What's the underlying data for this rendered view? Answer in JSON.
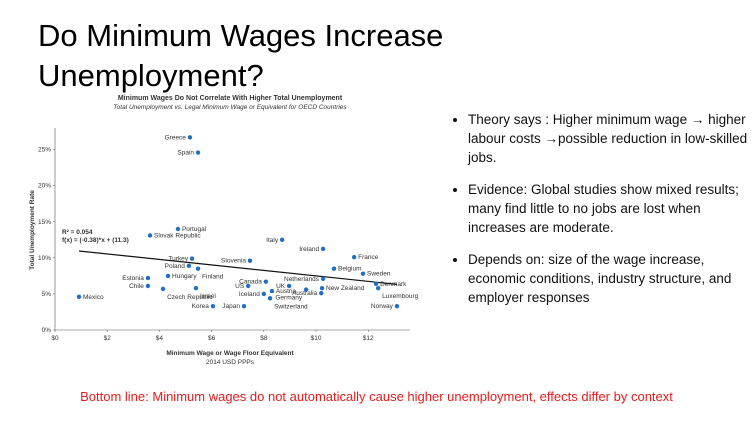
{
  "slide_title": [
    "Do Minimum Wages Increase",
    "Unemployment?"
  ],
  "bullets": [
    "Theory says : Higher minimum wage → higher labour costs →possible reduction in low-skilled jobs.",
    "Evidence: Global studies show mixed results; many find little to no jobs are lost when increases are moderate.",
    "Depends on: size of the wage increase, economic conditions, industry structure, and employer responses"
  ],
  "bottom_line": "Bottom line: Minimum wages do not automatically cause higher unemployment, effects differ by context",
  "chart_data": {
    "type": "scatter",
    "title": "Minimum Wages Do Not Correlate With Higher Total Unemployment",
    "subtitle": "Total Unemployment vs. Legal Minimum Wage or Equivalent for OECD Countries",
    "x_label": "Minimum Wage or Wage Floor Equivalent",
    "x_sublabel": "2014 USD PPPs",
    "y_label": "Total Unemployment Rate",
    "color": "#1f6fc4",
    "point_labels": [
      "Greece",
      "Spain",
      "Portugal",
      "Slovak Republic",
      "Italy",
      "Ireland",
      "France",
      "Slovenia",
      "Turkey",
      "Poland",
      "Finland",
      "Belgium",
      "Sweden",
      "Netherlands",
      "Estonia",
      "Hungary",
      "Chile",
      "Czech Republic",
      "Canada",
      "US",
      "UK",
      "New Zealand",
      "Denmark",
      "Austria",
      "Iceland",
      "Luxembourg",
      "Israel",
      "Australia",
      "Germany",
      "Switzerland",
      "Korea",
      "Japan",
      "Norway",
      "Mexico"
    ],
    "x": [
      5.17,
      5.48,
      4.71,
      3.64,
      8.7,
      10.27,
      11.46,
      7.47,
      5.25,
      5.13,
      5.48,
      10.69,
      11.8,
      10.27,
      3.56,
      4.33,
      3.56,
      4.14,
      8.08,
      7.4,
      8.97,
      10.23,
      12.3,
      8.31,
      8.0,
      12.38,
      5.4,
      10.2,
      9.62,
      8.24,
      6.05,
      7.24,
      13.1,
      0.92
    ],
    "values": [
      26.7,
      24.6,
      14.0,
      13.1,
      12.5,
      11.25,
      10.1,
      9.6,
      9.9,
      8.9,
      8.5,
      8.5,
      7.8,
      7.1,
      7.2,
      7.5,
      6.1,
      5.7,
      6.7,
      6.1,
      6.1,
      5.8,
      6.4,
      5.4,
      5.0,
      5.8,
      5.8,
      5.1,
      5.6,
      4.4,
      3.3,
      3.3,
      3.3,
      4.6
    ],
    "trend": {
      "slope": -0.38,
      "intercept": 11.3,
      "labels": [
        "R² = 0.054",
        "f(x) = (-0.38)*x + (11.3)"
      ]
    },
    "xlim": [
      0,
      13.6
    ],
    "ylim": [
      0,
      28
    ],
    "xticks": [
      {
        "value": 0,
        "label": "$0"
      },
      {
        "value": 2,
        "label": "$2"
      },
      {
        "value": 4,
        "label": "$4"
      },
      {
        "value": 6,
        "label": "$6"
      },
      {
        "value": 8,
        "label": "$8"
      },
      {
        "value": 10,
        "label": "$10"
      },
      {
        "value": 12,
        "label": "$12"
      }
    ],
    "yticks": [
      {
        "value": 0,
        "label": "0%"
      },
      {
        "value": 5,
        "label": "5%"
      },
      {
        "value": 10,
        "label": "10%"
      },
      {
        "value": 15,
        "label": "15%"
      },
      {
        "value": 20,
        "label": "20%"
      },
      {
        "value": 25,
        "label": "25%"
      }
    ]
  }
}
